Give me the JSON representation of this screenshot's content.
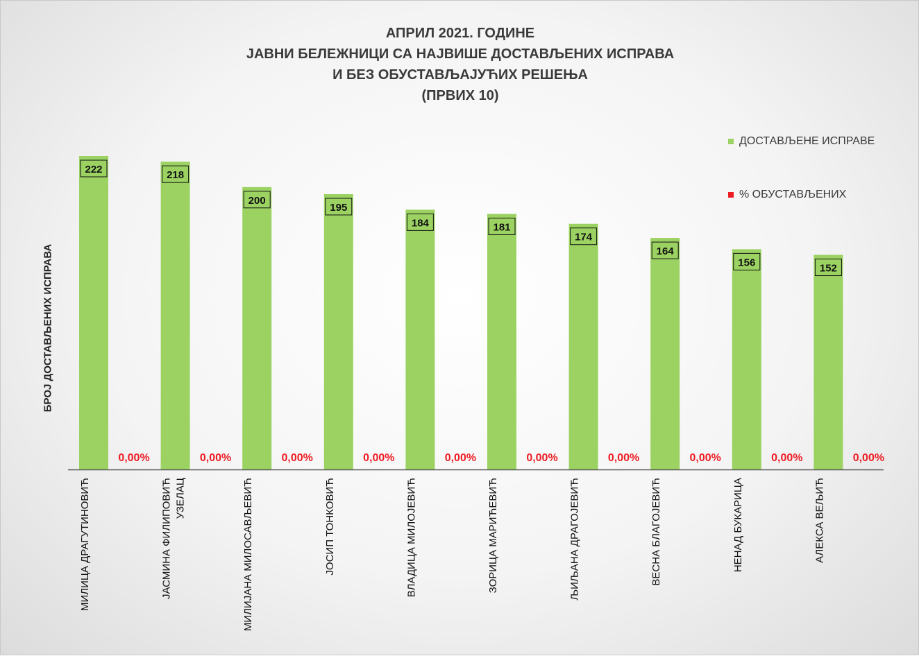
{
  "chart_data": {
    "type": "bar",
    "title": [
      "АПРИЛ 2021. ГОДИНЕ",
      "ЈАВНИ БЕЛЕЖНИЦИ СА НАЈВИШЕ ДОСТАВЉЕНИХ ИСПРАВА",
      "И БЕЗ ОБУСТАВЉАЈУЋИХ РЕШЕЊА",
      "(ПРВИХ 10)"
    ],
    "ylabel": "БРОЈ ДОСТАВЉЕНИХ ИСПРАВА",
    "xlabel": "",
    "categories": [
      [
        "МИЛИЦА ДРАГУТИНОВИЋ"
      ],
      [
        "ЈАСМИНА ФИЛИПОВИЋ",
        "УЗЕЛАЦ"
      ],
      [
        "МИЛИЈАНА МИЛОСАВЉЕВИЋ"
      ],
      [
        "ЈОСИП ТОНКОВИЋ"
      ],
      [
        "ВЛАДИЦА МИЛОЈЕВИЋ"
      ],
      [
        "ЗОРИЦА МАРИЋЕВИЋ"
      ],
      [
        "ЉИЉАНА ДРАГОЈЕВИЋ"
      ],
      [
        "ВЕСНА БЛАГОЈЕВИЋ"
      ],
      [
        "НЕНАД БУКАРИЦА"
      ],
      [
        "АЛЕКСА ВЕЉИЋ"
      ]
    ],
    "series": [
      {
        "name": "ДОСТАВЉЕНЕ ИСПРАВЕ",
        "color": "#9bd262",
        "values": [
          222,
          218,
          200,
          195,
          184,
          181,
          174,
          164,
          156,
          152
        ],
        "labels": [
          "222",
          "218",
          "200",
          "195",
          "184",
          "181",
          "174",
          "164",
          "156",
          "152"
        ]
      },
      {
        "name": "% ОБУСТАВЉЕНИХ",
        "color": "#ee1c24",
        "values": [
          0,
          0,
          0,
          0,
          0,
          0,
          0,
          0,
          0,
          0
        ],
        "labels": [
          "0,00%",
          "0,00%",
          "0,00%",
          "0,00%",
          "0,00%",
          "0,00%",
          "0,00%",
          "0,00%",
          "0,00%",
          "0,00%"
        ]
      }
    ],
    "ylim": [
      0,
      222
    ],
    "grid": false,
    "legend": "top-right"
  }
}
